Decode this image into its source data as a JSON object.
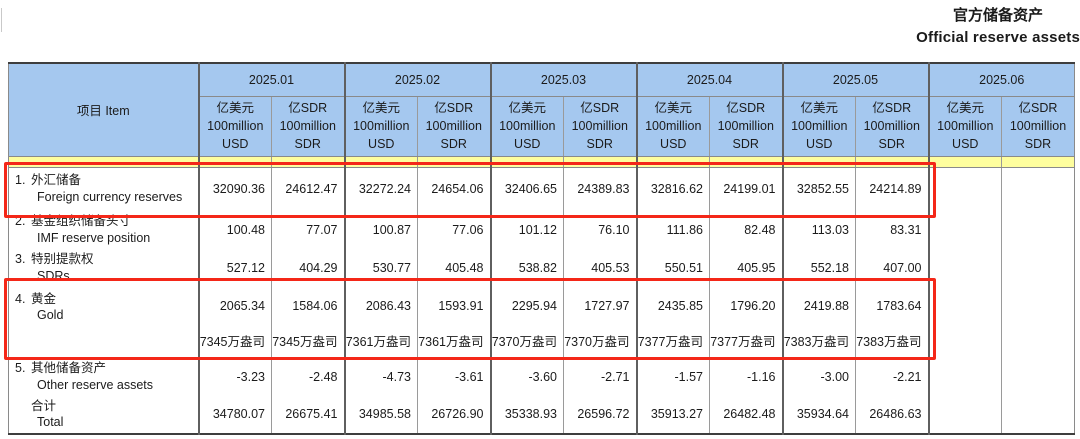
{
  "title": {
    "zh": "官方储备资产",
    "en": "Official reserve assets"
  },
  "colors": {
    "header_blue": "#a5c8ef",
    "highlight_yellow": "#fefe9e",
    "annotation_red": "#f42718"
  },
  "table": {
    "item_header": "项目 Item",
    "months": [
      "2025.01",
      "2025.02",
      "2025.03",
      "2025.04",
      "2025.05",
      "2025.06"
    ],
    "unit_usd": [
      "亿美元",
      "100million",
      "USD"
    ],
    "unit_sdr": [
      "亿SDR",
      "100million",
      "SDR"
    ],
    "rows": [
      {
        "no": "1.",
        "zh": "外汇储备",
        "en": "Foreign currency reserves",
        "values": [
          "32090.36",
          "24612.47",
          "32272.24",
          "24654.06",
          "32406.65",
          "24389.83",
          "32816.62",
          "24199.01",
          "32852.55",
          "24214.89",
          "",
          ""
        ]
      },
      {
        "no": "2.",
        "zh": "基金组织储备头寸",
        "en": "IMF reserve position",
        "values": [
          "100.48",
          "77.07",
          "100.87",
          "77.06",
          "101.12",
          "76.10",
          "111.86",
          "82.48",
          "113.03",
          "83.31",
          "",
          ""
        ]
      },
      {
        "no": "3.",
        "zh": "特别提款权",
        "en": "SDRs",
        "values": [
          "527.12",
          "404.29",
          "530.77",
          "405.48",
          "538.82",
          "405.53",
          "550.51",
          "405.95",
          "552.18",
          "407.00",
          "",
          ""
        ]
      },
      {
        "no": "4.",
        "zh": "黄金",
        "en": "Gold",
        "values": [
          "2065.34",
          "1584.06",
          "2086.43",
          "1593.91",
          "2295.94",
          "1727.97",
          "2435.85",
          "1796.20",
          "2419.88",
          "1783.64",
          "",
          ""
        ],
        "ounces": [
          "7345万盎司",
          "7345万盎司",
          "7361万盎司",
          "7361万盎司",
          "7370万盎司",
          "7370万盎司",
          "7377万盎司",
          "7377万盎司",
          "7383万盎司",
          "7383万盎司",
          "",
          ""
        ]
      },
      {
        "no": "5.",
        "zh": "其他储备资产",
        "en": "Other reserve assets",
        "values": [
          "-3.23",
          "-2.48",
          "-4.73",
          "-3.61",
          "-3.60",
          "-2.71",
          "-1.57",
          "-1.16",
          "-3.00",
          "-2.21",
          "",
          ""
        ]
      },
      {
        "no": "",
        "zh": "合计",
        "en": "Total",
        "values": [
          "34780.07",
          "26675.41",
          "34985.58",
          "26726.90",
          "35338.93",
          "26596.72",
          "35913.27",
          "26482.48",
          "35934.64",
          "26486.63",
          "",
          ""
        ]
      }
    ]
  }
}
